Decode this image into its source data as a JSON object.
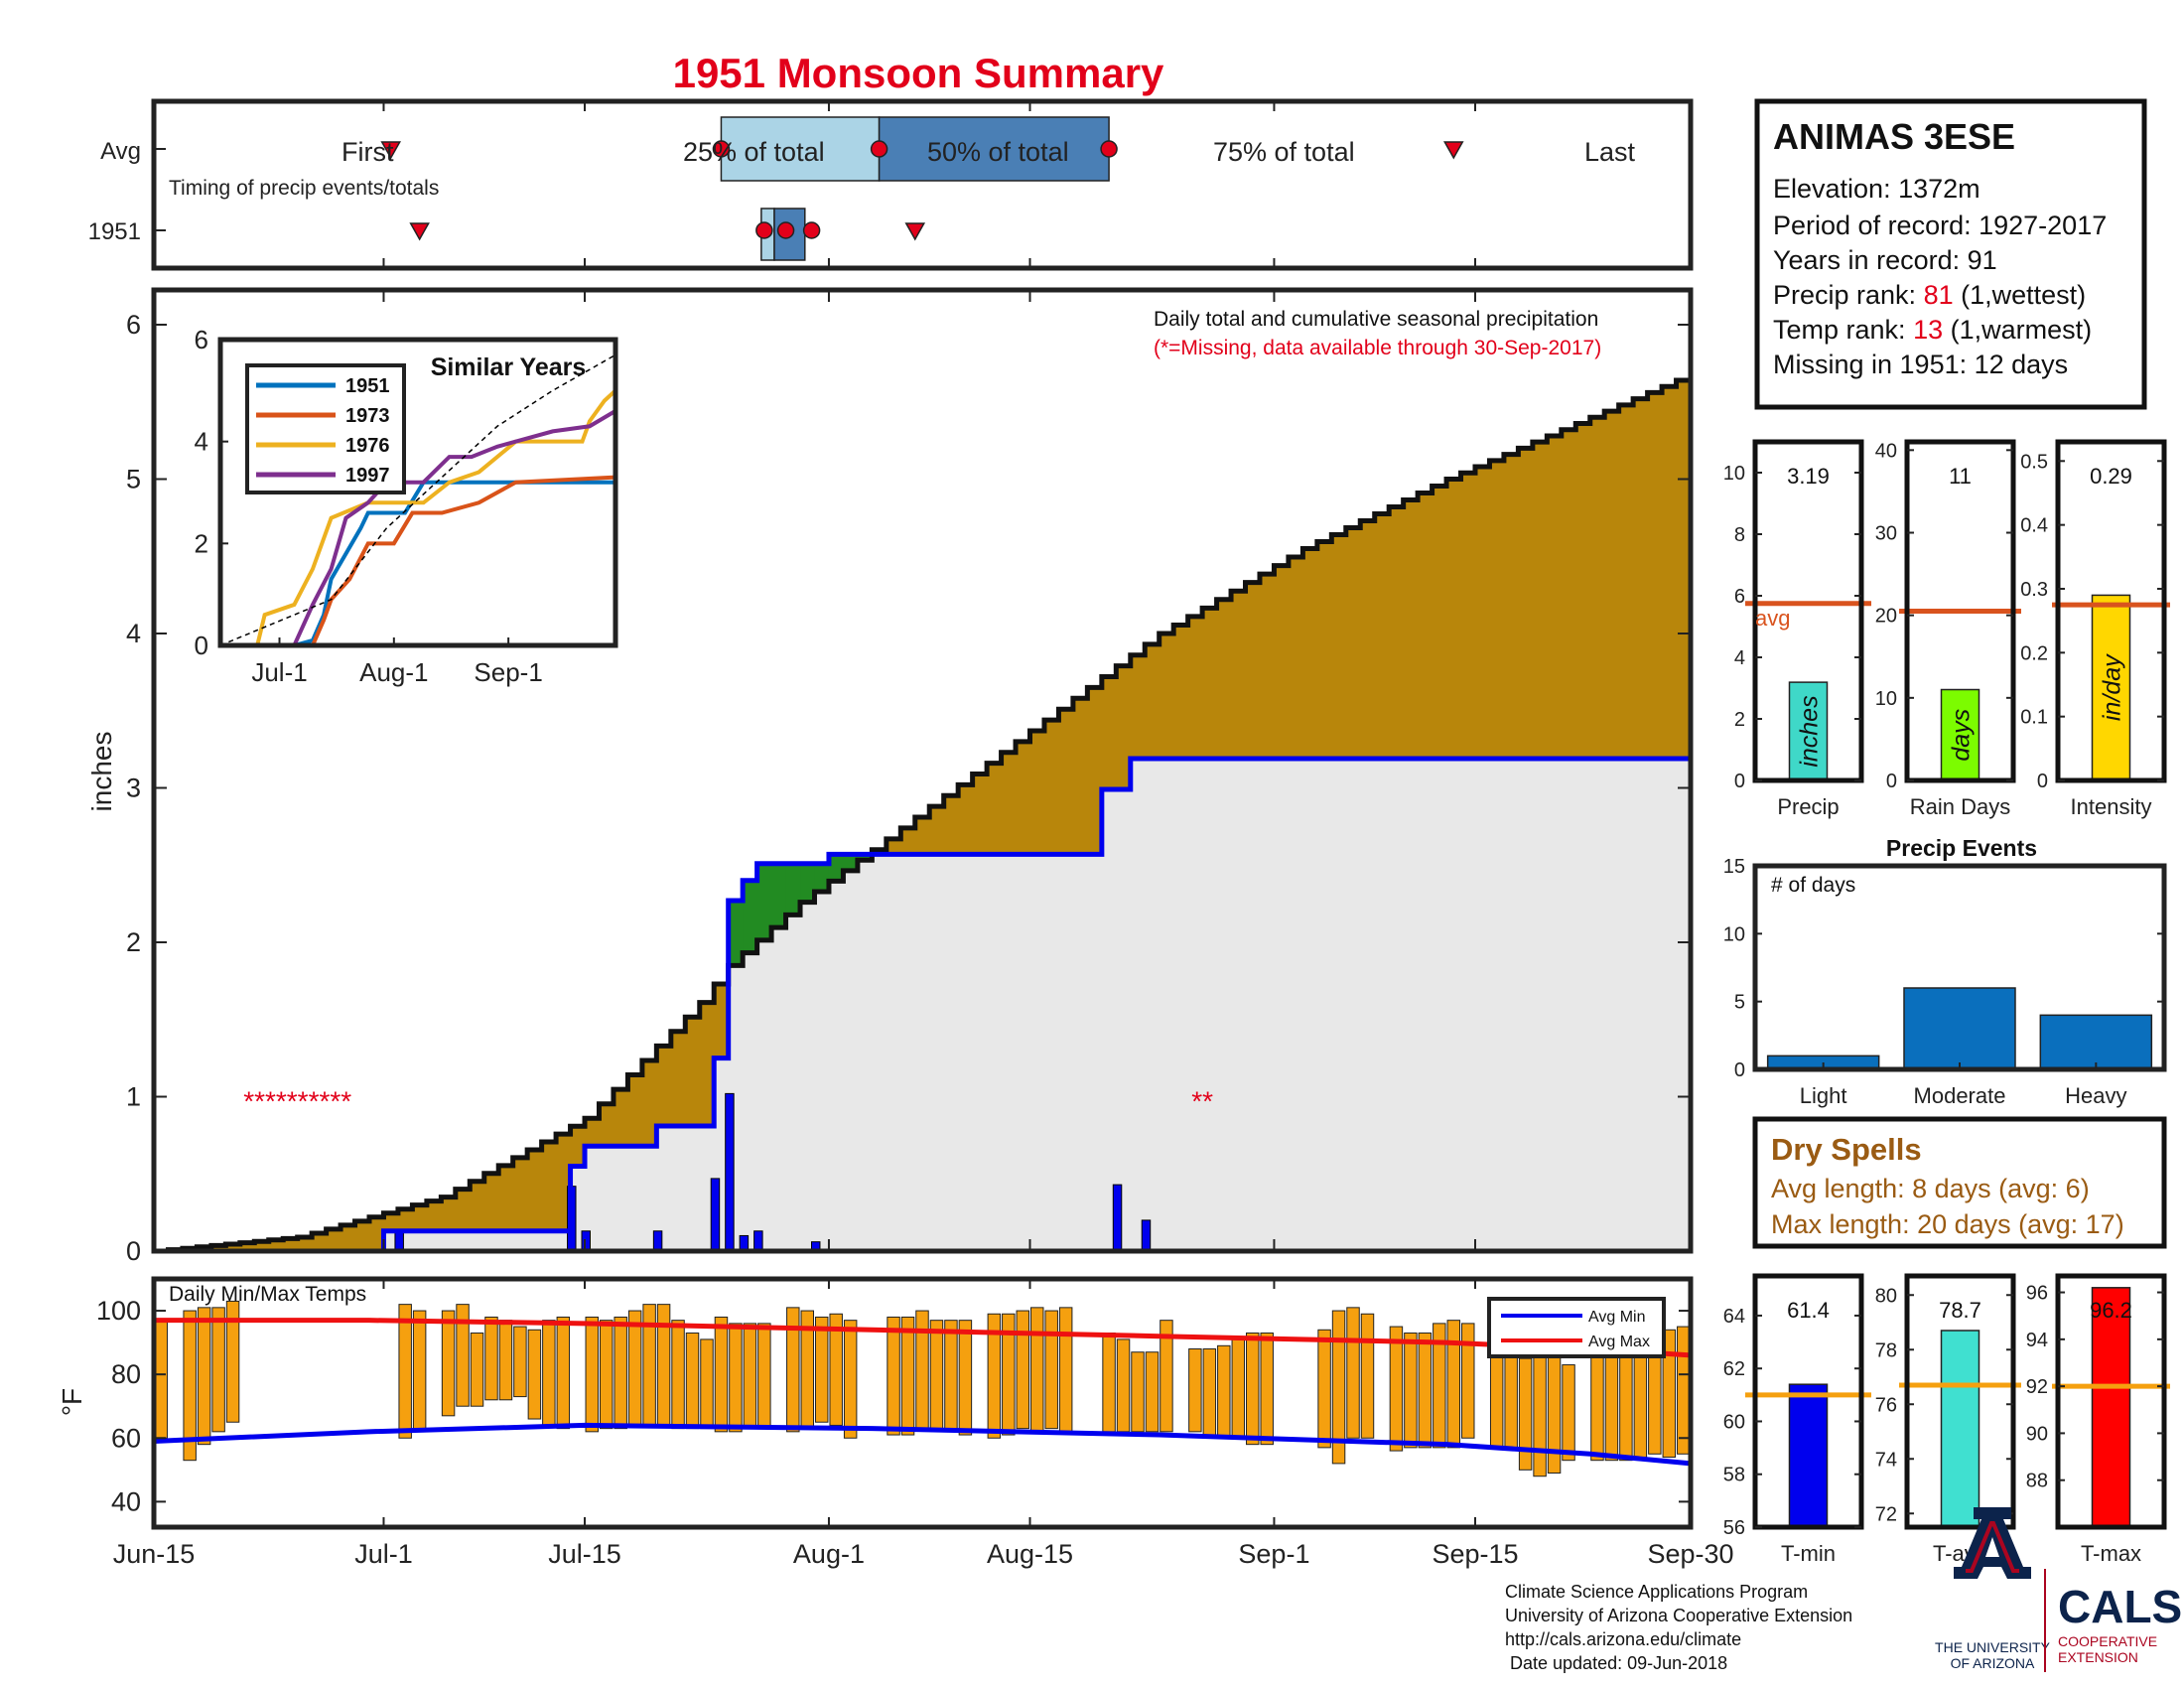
{
  "title": "1951 Monsoon Summary",
  "colors": {
    "title": "#e2001a",
    "red": "#e2001a",
    "cum_avg": "#b8860b",
    "cum_above": "#228b22",
    "cum_area": "#e8e8e8",
    "cum_line": "#0000ee",
    "daily_bar": "#0000ee",
    "temp_bar": "#f5a00f",
    "avg_min": "#0000ee",
    "avg_max": "#ee1111",
    "event_bar": "#0a6fbd",
    "pct25": "#abd4e6",
    "pct50": "#4a7fb5",
    "dryspell": "#9a5b13",
    "orange_ref": "#d9531e"
  },
  "station": {
    "name": "ANIMAS 3ESE",
    "elevation_label": "Elevation: 1372m",
    "period_label": "Period of record: 1927-2017",
    "years_label": "Years in record: 91",
    "precip_rank_label": "Precip rank:",
    "precip_rank": "81",
    "precip_rank_note": "(1,wettest)",
    "temp_rank_label": "Temp rank:",
    "temp_rank": "13",
    "temp_rank_note": "(1,warmest)",
    "missing_label": "Missing in 1951: 12 days"
  },
  "timing": {
    "avg_label": "Avg",
    "year_label": "1951",
    "caption": "Timing of precip events/totals",
    "first_label": "First",
    "last_label": "Last",
    "p25_label": "25% of total",
    "p50_label": "50% of total",
    "p75_label": "75% of total",
    "avg": {
      "first": 16.5,
      "p25": 39.5,
      "p50": 50.5,
      "p75": 66.5,
      "last": 90.5
    },
    "year": {
      "first": 18.5,
      "p25": 42.5,
      "p50": 43.2,
      "p75": 44.5,
      "last": 53
    }
  },
  "chart_data": [
    {
      "type": "area",
      "name": "main",
      "note": "Daily total and cumulative seasonal precipitation",
      "missing_note": "(*=Missing, data available through 30-Sep-2017)",
      "ylabel": "inches",
      "xlim": [
        "Jun-15",
        "Sep-30"
      ],
      "ylim": [
        0,
        6.2
      ],
      "x_ticks": [
        "Jun-15",
        "Jul-1",
        "Jul-15",
        "Aug-1",
        "Aug-15",
        "Sep-1",
        "Sep-15",
        "Sep-30"
      ],
      "x_tick_days": [
        0,
        16,
        30,
        47,
        61,
        78,
        92,
        107
      ],
      "y_ticks": [
        "0",
        "1",
        "2",
        "3",
        "4",
        "5",
        "6"
      ],
      "avg_cumulative": {
        "day": [
          0,
          10,
          20,
          30,
          38,
          40,
          45,
          50,
          60,
          70,
          80,
          90,
          100,
          107
        ],
        "inches": [
          0,
          0.09,
          0.35,
          0.86,
          1.61,
          1.85,
          2.26,
          2.6,
          3.3,
          4.0,
          4.55,
          5.0,
          5.4,
          5.68
        ]
      },
      "cumulative_1951": [
        {
          "day": 16,
          "inches": 0.13
        },
        {
          "day": 29,
          "inches": 0.55
        },
        {
          "day": 30,
          "inches": 0.68
        },
        {
          "day": 35,
          "inches": 0.81
        },
        {
          "day": 39,
          "inches": 1.25
        },
        {
          "day": 40,
          "inches": 2.27
        },
        {
          "day": 41,
          "inches": 2.4
        },
        {
          "day": 42,
          "inches": 2.51
        },
        {
          "day": 47,
          "inches": 2.57
        },
        {
          "day": 66,
          "inches": 2.99
        },
        {
          "day": 68,
          "inches": 3.19
        },
        {
          "day": 107,
          "inches": 3.19
        }
      ],
      "daily_1951": [
        {
          "day": 17,
          "inches": 0.13
        },
        {
          "day": 29,
          "inches": 0.42
        },
        {
          "day": 30,
          "inches": 0.13
        },
        {
          "day": 35,
          "inches": 0.13
        },
        {
          "day": 39,
          "inches": 0.47
        },
        {
          "day": 40,
          "inches": 1.02
        },
        {
          "day": 41,
          "inches": 0.1
        },
        {
          "day": 42,
          "inches": 0.13
        },
        {
          "day": 46,
          "inches": 0.06
        },
        {
          "day": 67,
          "inches": 0.43
        },
        {
          "day": 69,
          "inches": 0.2
        }
      ],
      "missing_markers": [
        {
          "label": "**********",
          "day": 10
        },
        {
          "label": "**",
          "day": 73
        }
      ]
    },
    {
      "type": "line",
      "name": "similar_years",
      "title": "Similar Years",
      "x_ticks": [
        "Jul-1",
        "Aug-1",
        "Sep-1"
      ],
      "y_ticks": [
        "0",
        "2",
        "4",
        "6"
      ],
      "ylim": [
        0,
        6
      ],
      "series": [
        {
          "name": "1951",
          "color": "#0072bd",
          "values": [
            [
              0,
              0
            ],
            [
              20,
              0
            ],
            [
              25,
              0.1
            ],
            [
              28,
              0.6
            ],
            [
              30,
              1.3
            ],
            [
              38,
              2.3
            ],
            [
              40,
              2.6
            ],
            [
              50,
              2.6
            ],
            [
              55,
              3.2
            ],
            [
              67,
              3.2
            ],
            [
              77,
              3.2
            ],
            [
              107,
              3.2
            ]
          ]
        },
        {
          "name": "1973",
          "color": "#d95319",
          "values": [
            [
              0,
              0
            ],
            [
              25,
              0
            ],
            [
              28,
              0.5
            ],
            [
              30,
              0.9
            ],
            [
              35,
              1.3
            ],
            [
              40,
              2.0
            ],
            [
              47,
              2.0
            ],
            [
              52,
              2.6
            ],
            [
              60,
              2.6
            ],
            [
              70,
              2.8
            ],
            [
              80,
              3.2
            ],
            [
              107,
              3.3
            ]
          ]
        },
        {
          "name": "1976",
          "color": "#edb120",
          "values": [
            [
              0,
              0
            ],
            [
              10,
              0
            ],
            [
              12,
              0.6
            ],
            [
              20,
              0.8
            ],
            [
              25,
              1.5
            ],
            [
              30,
              2.5
            ],
            [
              40,
              2.8
            ],
            [
              55,
              2.8
            ],
            [
              62,
              3.2
            ],
            [
              70,
              3.4
            ],
            [
              80,
              4.0
            ],
            [
              98,
              4.0
            ],
            [
              100,
              4.4
            ],
            [
              104,
              4.8
            ],
            [
              107,
              5.0
            ]
          ]
        },
        {
          "name": "1997",
          "color": "#7e2f8e",
          "values": [
            [
              0,
              0
            ],
            [
              20,
              0
            ],
            [
              25,
              0.8
            ],
            [
              30,
              1.5
            ],
            [
              34,
              2.5
            ],
            [
              40,
              2.8
            ],
            [
              45,
              3.2
            ],
            [
              55,
              3.2
            ],
            [
              62,
              3.7
            ],
            [
              68,
              3.7
            ],
            [
              75,
              3.9
            ],
            [
              90,
              4.2
            ],
            [
              100,
              4.3
            ],
            [
              107,
              4.6
            ]
          ]
        },
        {
          "name": "avg",
          "color": "#000000",
          "values": [
            [
              0,
              0
            ],
            [
              30,
              0.9
            ],
            [
              45,
              2.3
            ],
            [
              60,
              3.3
            ],
            [
              75,
              4.3
            ],
            [
              90,
              5.0
            ],
            [
              107,
              5.7
            ]
          ]
        }
      ]
    },
    {
      "type": "bar",
      "name": "temps",
      "title": "Daily Min/Max Temps",
      "ylabel": "°F",
      "ylim": [
        32,
        110
      ],
      "y_ticks": [
        "40",
        "60",
        "80",
        "100"
      ],
      "legend": [
        "Avg Min",
        "Avg Max"
      ],
      "avg_min": {
        "day": [
          0,
          15,
          30,
          50,
          70,
          90,
          100,
          107
        ],
        "f": [
          59,
          62,
          64,
          63,
          61,
          58,
          55,
          52
        ]
      },
      "avg_max": {
        "day": [
          0,
          15,
          30,
          50,
          70,
          90,
          100,
          107
        ],
        "f": [
          97,
          97,
          96,
          94,
          92,
          90,
          88,
          86
        ]
      },
      "days": [
        {
          "day": 0,
          "min": 60,
          "max": 97
        },
        {
          "day": 2,
          "min": 53,
          "max": 100
        },
        {
          "day": 3,
          "min": 58,
          "max": 101
        },
        {
          "day": 4,
          "min": 62,
          "max": 101
        },
        {
          "day": 5,
          "min": 65,
          "max": 103
        },
        {
          "day": 17,
          "min": 60,
          "max": 102
        },
        {
          "day": 18,
          "min": 62,
          "max": 100
        },
        {
          "day": 20,
          "min": 67,
          "max": 100
        },
        {
          "day": 21,
          "min": 70,
          "max": 102
        },
        {
          "day": 22,
          "min": 70,
          "max": 93
        },
        {
          "day": 23,
          "min": 72,
          "max": 98
        },
        {
          "day": 24,
          "min": 72,
          "max": 97
        },
        {
          "day": 25,
          "min": 73,
          "max": 95
        },
        {
          "day": 26,
          "min": 66,
          "max": 94
        },
        {
          "day": 27,
          "min": 64,
          "max": 97
        },
        {
          "day": 28,
          "min": 63,
          "max": 98
        },
        {
          "day": 30,
          "min": 62,
          "max": 98
        },
        {
          "day": 31,
          "min": 63,
          "max": 97
        },
        {
          "day": 32,
          "min": 63,
          "max": 98
        },
        {
          "day": 33,
          "min": 64,
          "max": 100
        },
        {
          "day": 34,
          "min": 64,
          "max": 102
        },
        {
          "day": 35,
          "min": 64,
          "max": 102
        },
        {
          "day": 36,
          "min": 63,
          "max": 97
        },
        {
          "day": 37,
          "min": 63,
          "max": 93
        },
        {
          "day": 38,
          "min": 63,
          "max": 91
        },
        {
          "day": 39,
          "min": 62,
          "max": 98
        },
        {
          "day": 40,
          "min": 62,
          "max": 96
        },
        {
          "day": 41,
          "min": 63,
          "max": 96
        },
        {
          "day": 42,
          "min": 63,
          "max": 96
        },
        {
          "day": 44,
          "min": 62,
          "max": 101
        },
        {
          "day": 45,
          "min": 63,
          "max": 100
        },
        {
          "day": 46,
          "min": 65,
          "max": 98
        },
        {
          "day": 47,
          "min": 64,
          "max": 99
        },
        {
          "day": 48,
          "min": 60,
          "max": 97
        },
        {
          "day": 51,
          "min": 61,
          "max": 98
        },
        {
          "day": 52,
          "min": 61,
          "max": 98
        },
        {
          "day": 53,
          "min": 63,
          "max": 100
        },
        {
          "day": 54,
          "min": 63,
          "max": 97
        },
        {
          "day": 55,
          "min": 62,
          "max": 97
        },
        {
          "day": 56,
          "min": 61,
          "max": 97
        },
        {
          "day": 58,
          "min": 60,
          "max": 99
        },
        {
          "day": 59,
          "min": 61,
          "max": 99
        },
        {
          "day": 60,
          "min": 63,
          "max": 100
        },
        {
          "day": 61,
          "min": 62,
          "max": 101
        },
        {
          "day": 62,
          "min": 63,
          "max": 100
        },
        {
          "day": 63,
          "min": 62,
          "max": 101
        },
        {
          "day": 66,
          "min": 62,
          "max": 93
        },
        {
          "day": 67,
          "min": 62,
          "max": 91
        },
        {
          "day": 68,
          "min": 62,
          "max": 87
        },
        {
          "day": 69,
          "min": 62,
          "max": 87
        },
        {
          "day": 70,
          "min": 62,
          "max": 97
        },
        {
          "day": 72,
          "min": 62,
          "max": 88
        },
        {
          "day": 73,
          "min": 61,
          "max": 88
        },
        {
          "day": 74,
          "min": 60,
          "max": 89
        },
        {
          "day": 75,
          "min": 60,
          "max": 91
        },
        {
          "day": 76,
          "min": 58,
          "max": 93
        },
        {
          "day": 77,
          "min": 58,
          "max": 93
        },
        {
          "day": 81,
          "min": 57,
          "max": 94
        },
        {
          "day": 82,
          "min": 52,
          "max": 100
        },
        {
          "day": 83,
          "min": 60,
          "max": 101
        },
        {
          "day": 84,
          "min": 60,
          "max": 99
        },
        {
          "day": 86,
          "min": 56,
          "max": 95
        },
        {
          "day": 87,
          "min": 57,
          "max": 93
        },
        {
          "day": 88,
          "min": 57,
          "max": 93
        },
        {
          "day": 89,
          "min": 57,
          "max": 96
        },
        {
          "day": 90,
          "min": 57,
          "max": 97
        },
        {
          "day": 91,
          "min": 60,
          "max": 96
        },
        {
          "day": 93,
          "min": 57,
          "max": 90
        },
        {
          "day": 94,
          "min": 57,
          "max": 88
        },
        {
          "day": 95,
          "min": 50,
          "max": 85
        },
        {
          "day": 96,
          "min": 48,
          "max": 86
        },
        {
          "day": 97,
          "min": 49,
          "max": 86
        },
        {
          "day": 98,
          "min": 53,
          "max": 83
        },
        {
          "day": 100,
          "min": 53,
          "max": 88
        },
        {
          "day": 101,
          "min": 53,
          "max": 89
        },
        {
          "day": 102,
          "min": 53,
          "max": 90
        },
        {
          "day": 103,
          "min": 54,
          "max": 90
        },
        {
          "day": 104,
          "min": 55,
          "max": 93
        },
        {
          "day": 105,
          "min": 54,
          "max": 94
        },
        {
          "day": 106,
          "min": 55,
          "max": 95
        }
      ]
    },
    {
      "type": "bar",
      "name": "precip_total",
      "xlabel": "Precip",
      "value": 3.19,
      "value_label": "3.19",
      "avg": 5.75,
      "avg_label": "avg",
      "bar_label": "inches",
      "color": "#3fd8c8",
      "ylim": [
        0,
        11
      ],
      "y_ticks": [
        "0",
        "2",
        "4",
        "6",
        "8",
        "10"
      ]
    },
    {
      "type": "bar",
      "name": "rain_days",
      "xlabel": "Rain Days",
      "value": 11,
      "value_label": "11",
      "avg": 20.5,
      "bar_label": "days",
      "color": "#7cfc00",
      "ylim": [
        0,
        41
      ],
      "y_ticks": [
        "0",
        "10",
        "20",
        "30",
        "40"
      ]
    },
    {
      "type": "bar",
      "name": "intensity",
      "xlabel": "Intensity",
      "value": 0.29,
      "value_label": "0.29",
      "avg": 0.275,
      "bar_label": "in/day",
      "color": "#ffd700",
      "ylim": [
        0,
        0.53
      ],
      "y_ticks": [
        "0",
        "0.1",
        "0.2",
        "0.3",
        "0.4",
        "0.5"
      ]
    },
    {
      "type": "bar",
      "name": "precip_events",
      "title": "Precip Events",
      "ylabel": "# of days",
      "categories": [
        "Light",
        "Moderate",
        "Heavy"
      ],
      "values": [
        1,
        6,
        4
      ],
      "ylim": [
        0,
        15
      ],
      "y_ticks": [
        "0",
        "5",
        "10",
        "15"
      ]
    },
    {
      "type": "bar",
      "name": "t_min",
      "xlabel": "T-min",
      "value": 61.4,
      "value_label": "61.4",
      "avg": 61.0,
      "color": "#0000ee",
      "ylim": [
        56,
        65.5
      ],
      "y_ticks": [
        "56",
        "58",
        "60",
        "62",
        "64"
      ]
    },
    {
      "type": "bar",
      "name": "t_avg",
      "xlabel": "T-avg",
      "value": 78.7,
      "value_label": "78.7",
      "avg": 76.7,
      "color": "#40e0d0",
      "ylim": [
        71.5,
        80.7
      ],
      "y_ticks": [
        "72",
        "74",
        "76",
        "78",
        "80"
      ]
    },
    {
      "type": "bar",
      "name": "t_max",
      "xlabel": "T-max",
      "value": 96.2,
      "value_label": "96.2",
      "avg": 92.0,
      "color": "#ff0000",
      "ylim": [
        86,
        96.7
      ],
      "y_ticks": [
        "88",
        "90",
        "92",
        "94",
        "96"
      ]
    }
  ],
  "dry_spells": {
    "title": "Dry Spells",
    "avg_line": "Avg length: 8 days (avg: 6)",
    "max_line": "Max length: 20 days (avg: 17)"
  },
  "footer": {
    "line1": "Climate Science Applications Program",
    "line2": "University of Arizona Cooperative Extension",
    "line3": "http://cals.arizona.edu/climate",
    "line4": " Date updated: 09-Jun-2018"
  },
  "logos": {
    "ua_line1": "THE UNIVERSITY",
    "ua_line2": "OF ARIZONA",
    "cals": "CALS",
    "cals_line1": "COOPERATIVE",
    "cals_line2": "EXTENSION"
  }
}
